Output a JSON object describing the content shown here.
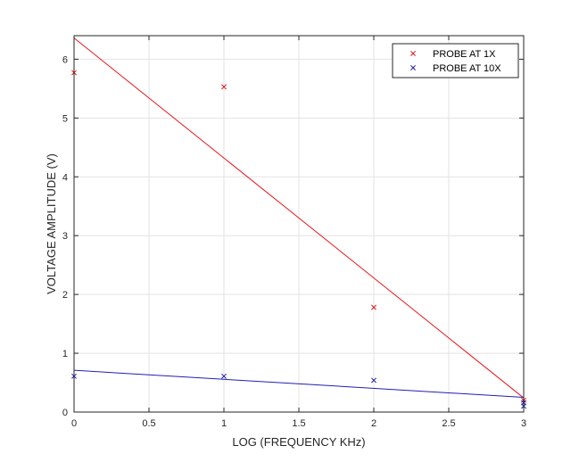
{
  "chart_data": {
    "type": "scatter",
    "xlabel": "LOG (FREQUENCY KHz)",
    "ylabel": "VOLTAGE AMPLITUDE (V)",
    "xlim": [
      0,
      3
    ],
    "ylim": [
      0,
      6.4
    ],
    "xticks": [
      0,
      0.5,
      1,
      1.5,
      2,
      2.5,
      3
    ],
    "xtick_labels": [
      "0",
      "0.5",
      "1",
      "1.5",
      "2",
      "2.5",
      "3"
    ],
    "yticks": [
      0,
      1,
      2,
      3,
      4,
      5,
      6
    ],
    "ytick_labels": [
      "0",
      "1",
      "2",
      "3",
      "4",
      "5",
      "6"
    ],
    "grid": true,
    "legend_position": "top-right",
    "series": [
      {
        "name": "PROBE AT 1X",
        "color": "#e41a1c",
        "marker": "x",
        "x": [
          0,
          1,
          2,
          3
        ],
        "y": [
          5.77,
          5.53,
          1.78,
          0.2
        ],
        "fit_line": {
          "x": [
            0,
            3
          ],
          "y": [
            6.36,
            0.24
          ]
        }
      },
      {
        "name": "PROBE AT 10X",
        "color": "#1f1fb4",
        "marker": "x",
        "x": [
          0,
          1,
          2,
          3,
          3
        ],
        "y": [
          0.61,
          0.61,
          0.54,
          0.16,
          0.1
        ],
        "fit_line": {
          "x": [
            0,
            3
          ],
          "y": [
            0.71,
            0.25
          ]
        }
      }
    ]
  }
}
